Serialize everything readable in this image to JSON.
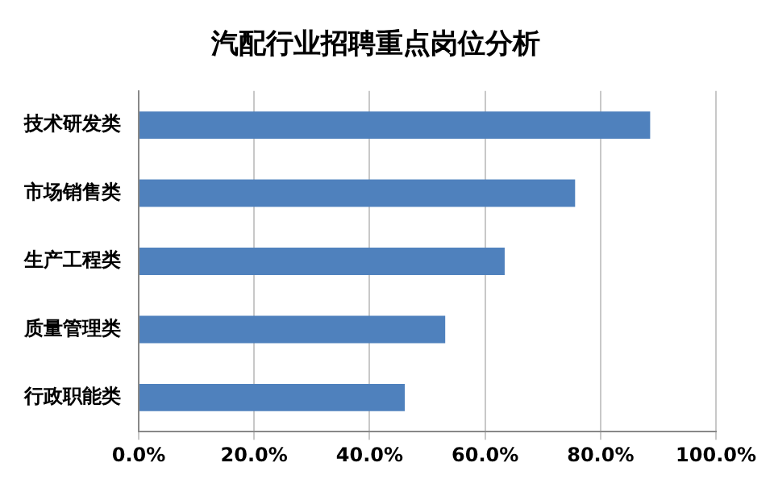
{
  "chart_data": {
    "type": "bar",
    "title": "汽配行业招聘重点岗位分析",
    "orientation": "horizontal",
    "categories": [
      "技术研发类",
      "市场销售类",
      "生产工程类",
      "质量管理类",
      "行政职能类"
    ],
    "values": [
      88.6,
      75.6,
      63.4,
      53.1,
      46.1
    ],
    "color": "#4f81bd",
    "xlim": [
      0,
      100
    ],
    "xticks": [
      {
        "value": 0,
        "label": "0.0%"
      },
      {
        "value": 20,
        "label": "20.0%"
      },
      {
        "value": 40,
        "label": "40.0%"
      },
      {
        "value": 60,
        "label": "60.0%"
      },
      {
        "value": 80,
        "label": "80.0%"
      },
      {
        "value": 100,
        "label": "100.0%"
      }
    ],
    "grid": "x",
    "legend": false
  }
}
